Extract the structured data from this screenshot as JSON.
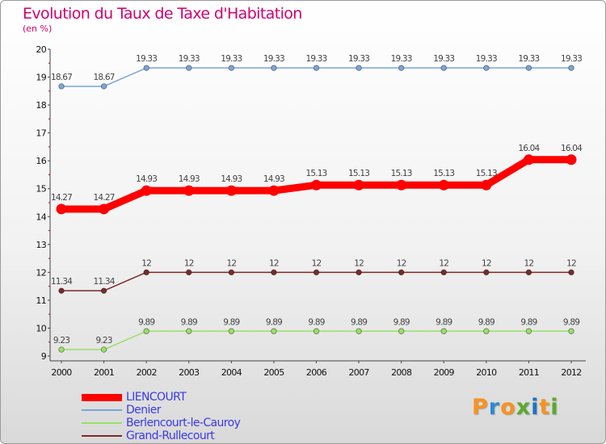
{
  "title": "Evolution du Taux de Taxe d'Habitation",
  "subtitle": "(en %)",
  "chart_data": {
    "type": "line",
    "x": [
      "2000",
      "2001",
      "2002",
      "2003",
      "2004",
      "2005",
      "2006",
      "2007",
      "2008",
      "2009",
      "2010",
      "2011",
      "2012"
    ],
    "ylim": [
      9,
      20
    ],
    "yticks": [
      9,
      10,
      11,
      12,
      13,
      14,
      15,
      16,
      17,
      18,
      19,
      20
    ],
    "grid": false,
    "legend_position": "bottom-left",
    "series": [
      {
        "name": "LIENCOURT",
        "color": "#ff0000",
        "width": 9,
        "values": [
          14.27,
          14.27,
          14.93,
          14.93,
          14.93,
          14.93,
          15.13,
          15.13,
          15.13,
          15.13,
          15.13,
          16.04,
          16.04
        ],
        "labels": [
          "14.27",
          "14.27",
          "14.93",
          "14.93",
          "14.93",
          "14.93",
          "15.13",
          "15.13",
          "15.13",
          "15.13",
          "15.13",
          "16.04",
          "16.04"
        ]
      },
      {
        "name": "Denier",
        "color": "#7aa6d6",
        "width": 1.5,
        "values": [
          18.67,
          18.67,
          19.33,
          19.33,
          19.33,
          19.33,
          19.33,
          19.33,
          19.33,
          19.33,
          19.33,
          19.33,
          19.33
        ],
        "labels": [
          "18.67",
          "18.67",
          "19.33",
          "19.33",
          "19.33",
          "19.33",
          "19.33",
          "19.33",
          "19.33",
          "19.33",
          "19.33",
          "19.33",
          "19.33"
        ]
      },
      {
        "name": "Berlencourt-le-Cauroy",
        "color": "#99e066",
        "width": 1.5,
        "values": [
          9.23,
          9.23,
          9.89,
          9.89,
          9.89,
          9.89,
          9.89,
          9.89,
          9.89,
          9.89,
          9.89,
          9.89,
          9.89
        ],
        "labels": [
          "9.23",
          "9.23",
          "9.89",
          "9.89",
          "9.89",
          "9.89",
          "9.89",
          "9.89",
          "9.89",
          "9.89",
          "9.89",
          "9.89",
          "9.89"
        ]
      },
      {
        "name": "Grand-Rullecourt",
        "color": "#7a2a2a",
        "width": 1.5,
        "values": [
          11.34,
          11.34,
          12,
          12,
          12,
          12,
          12,
          12,
          12,
          12,
          12,
          12,
          12
        ],
        "labels": [
          "11.34",
          "11.34",
          "12",
          "12",
          "12",
          "12",
          "12",
          "12",
          "12",
          "12",
          "12",
          "12",
          "12"
        ]
      }
    ]
  },
  "logo": {
    "text": "Proxiti",
    "colors": [
      "#f7931e",
      "#2e8bd6",
      "#f7931e",
      "#5aaa2c",
      "#1f74c2",
      "#f7931e",
      "#5aaa2c"
    ]
  }
}
